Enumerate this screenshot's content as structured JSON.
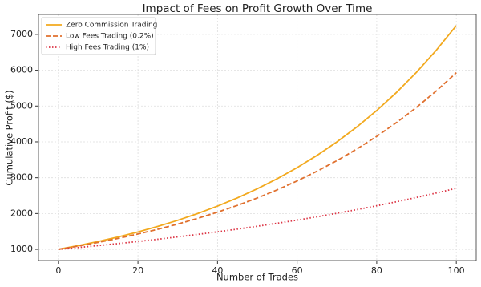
{
  "chart_data": {
    "type": "line",
    "title": "Impact of Fees on Profit Growth Over Time",
    "x_label": "Number of Trades",
    "y_label": "Cumulative Profit ($)",
    "x": [
      0,
      5,
      10,
      15,
      20,
      25,
      30,
      35,
      40,
      45,
      50,
      55,
      60,
      65,
      70,
      75,
      80,
      85,
      90,
      95,
      100
    ],
    "series": [
      {
        "name": "Zero Commission Trading",
        "color": "#f2a91e",
        "style": "solid",
        "values": [
          1000,
          1104,
          1219,
          1346,
          1486,
          1641,
          1811,
          2000,
          2208,
          2438,
          2692,
          2972,
          3281,
          3623,
          4000,
          4416,
          4875,
          5383,
          5943,
          6562,
          7245
        ]
      },
      {
        "name": "Low Fees Trading (0.2%)",
        "color": "#e0702e",
        "style": "dashed",
        "values": [
          1000,
          1093,
          1195,
          1306,
          1428,
          1561,
          1706,
          1865,
          2038,
          2228,
          2435,
          2662,
          2910,
          3181,
          3477,
          3800,
          4154,
          4541,
          4963,
          5425,
          5930
        ]
      },
      {
        "name": "High Fees Trading (1%)",
        "color": "#dc3545",
        "style": "dotted",
        "values": [
          1000,
          1051,
          1105,
          1161,
          1220,
          1282,
          1348,
          1417,
          1489,
          1565,
          1645,
          1729,
          1817,
          1909,
          2007,
          2109,
          2217,
          2330,
          2449,
          2574,
          2705
        ]
      }
    ],
    "xlim": [
      -5,
      105
    ],
    "xticks": [
      0,
      20,
      40,
      60,
      80,
      100
    ],
    "ylim": [
      688,
      7557
    ],
    "yticks": [
      1000,
      2000,
      3000,
      4000,
      5000,
      6000,
      7000
    ],
    "grid": true,
    "legend": "upper-left"
  }
}
